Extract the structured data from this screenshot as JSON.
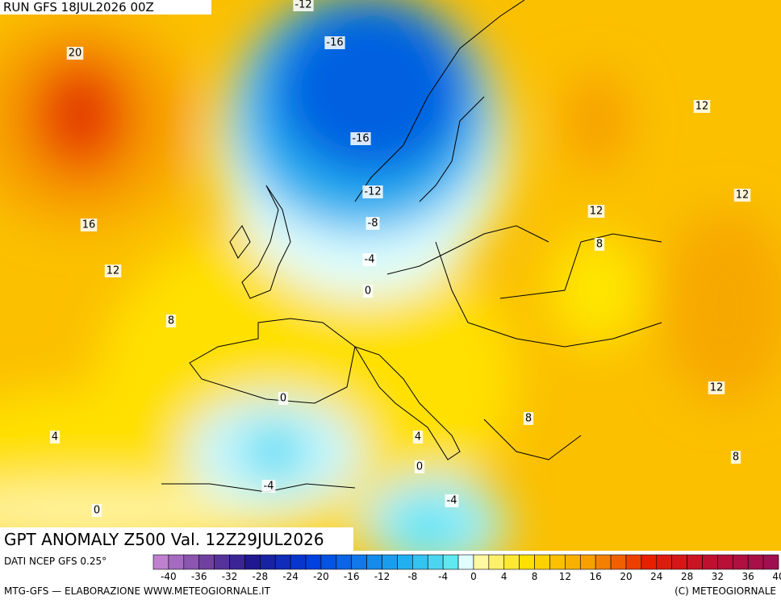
{
  "header": {
    "run": "RUN GFS 18JUL2026 00Z"
  },
  "map": {
    "contour_labels": [
      -12,
      20,
      -16,
      12,
      -16,
      -12,
      12,
      16,
      -8,
      12,
      8,
      -4,
      12,
      0,
      8,
      0,
      12,
      8,
      4,
      4,
      0,
      -4,
      -4,
      8,
      0
    ]
  },
  "title": "GPT ANOMALY Z500 Val. 12Z29JUL2026",
  "source": "DATI NCEP GFS 0.25°",
  "legend": {
    "ticks": [
      -40,
      -36,
      -32,
      -28,
      -24,
      -20,
      -16,
      -12,
      -8,
      -4,
      0,
      4,
      8,
      12,
      16,
      20,
      24,
      28,
      32,
      36,
      40
    ]
  },
  "footer": {
    "left": "MTG-GFS — ELABORAZIONE WWW.METEOGIORNALE.IT",
    "right": "(C) METEOGIORNALE"
  }
}
